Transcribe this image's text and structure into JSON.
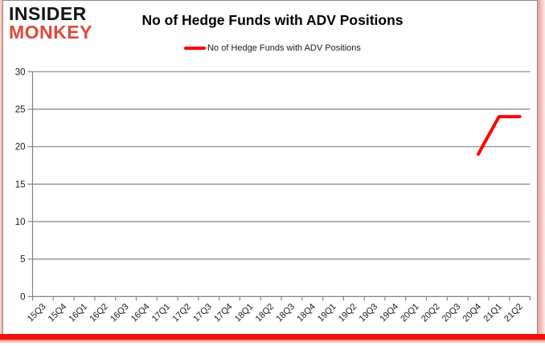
{
  "logo": {
    "line1": "INSIDER",
    "line2": "MONKEY",
    "line1_color": "#141414",
    "line2_color": "#e2473c"
  },
  "header": {
    "title": "No of Hedge Funds with ADV Positions"
  },
  "legend": {
    "label": "No of Hedge Funds with ADV Positions",
    "line_color": "#ff0000",
    "position": "top"
  },
  "colors": {
    "series_red": "#ff0000",
    "grid_gray": "#848484",
    "axis_gray": "#848484",
    "tick_label": "#1a1a1a",
    "frame_bottom_red": "#ee120b",
    "frame_pink": "#f2a79f",
    "frame_gray": "#8c8c8c"
  },
  "chart_data": {
    "type": "line",
    "title": "No of Hedge Funds with ADV Positions",
    "categories": [
      "15Q3",
      "15Q4",
      "16Q1",
      "16Q2",
      "16Q3",
      "16Q4",
      "17Q1",
      "17Q2",
      "17Q3",
      "17Q4",
      "18Q1",
      "18Q2",
      "18Q3",
      "18Q4",
      "19Q1",
      "19Q2",
      "19Q3",
      "19Q4",
      "20Q1",
      "20Q2",
      "20Q3",
      "20Q4",
      "21Q1",
      "21Q2"
    ],
    "series": [
      {
        "name": "No of Hedge Funds with ADV Positions",
        "color": "#ff0000",
        "values": [
          null,
          null,
          null,
          null,
          null,
          null,
          null,
          null,
          null,
          null,
          null,
          null,
          null,
          null,
          null,
          null,
          null,
          null,
          null,
          null,
          null,
          19,
          24,
          24
        ]
      }
    ],
    "xlabel": "",
    "ylabel": "",
    "ylim": [
      0,
      30
    ],
    "ytick_step": 5,
    "yticks": [
      0,
      5,
      10,
      15,
      20,
      25,
      30
    ],
    "grid": true,
    "legend_position": "top"
  }
}
